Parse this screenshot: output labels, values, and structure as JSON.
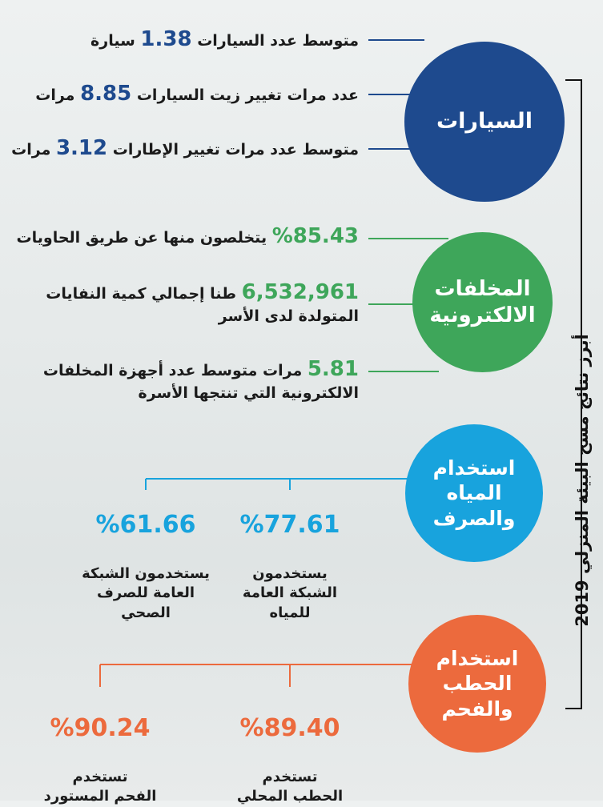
{
  "side_title": "أبرز نتائج مسح البيئة المنزلي 2019",
  "colors": {
    "blue": "#1e4a8e",
    "green": "#3ea65a",
    "cyan": "#18a3dd",
    "orange": "#ec6a3d"
  },
  "cars": {
    "label": "السيارات",
    "items": [
      {
        "pre": "متوسط عدد السيارات",
        "value": "1.38",
        "post": "سيارة"
      },
      {
        "pre": "عدد مرات تغيير زيت السيارات",
        "value": "8.85",
        "post": "مرات"
      },
      {
        "pre": "متوسط عدد مرات تغيير الإطارات",
        "value": "3.12",
        "post": "مرات"
      }
    ]
  },
  "ewaste": {
    "label": "المخلفات\nالالكترونية",
    "items": [
      {
        "value": "%85.43",
        "text": "يتخلصون منها عن طريق الحاويات"
      },
      {
        "value": "6,532,961",
        "text": "طنا إجمالي كمية النفايات",
        "line2": "المتولدة لدى الأسر"
      },
      {
        "value": "5.81",
        "text": "مرات متوسط عدد أجهزة المخلفات",
        "line2": "الالكترونية التي تنتجها الأسرة"
      }
    ]
  },
  "water": {
    "label": "استخدام\nالمياه\nوالصرف",
    "items": [
      {
        "value": "%77.61",
        "text": "يستخدمون\nالشبكة العامة\nللمياه"
      },
      {
        "value": "%61.66",
        "text": "يستخدمون الشبكة\nالعامة للصرف\nالصحي"
      }
    ]
  },
  "fuel": {
    "label": "استخدام\nالحطب\nوالفحم",
    "items": [
      {
        "value": "%89.40",
        "text": "تستخدم\nالحطب المحلي"
      },
      {
        "value": "%90.24",
        "text": "تستخدم\nالفحم المستورد"
      }
    ]
  }
}
